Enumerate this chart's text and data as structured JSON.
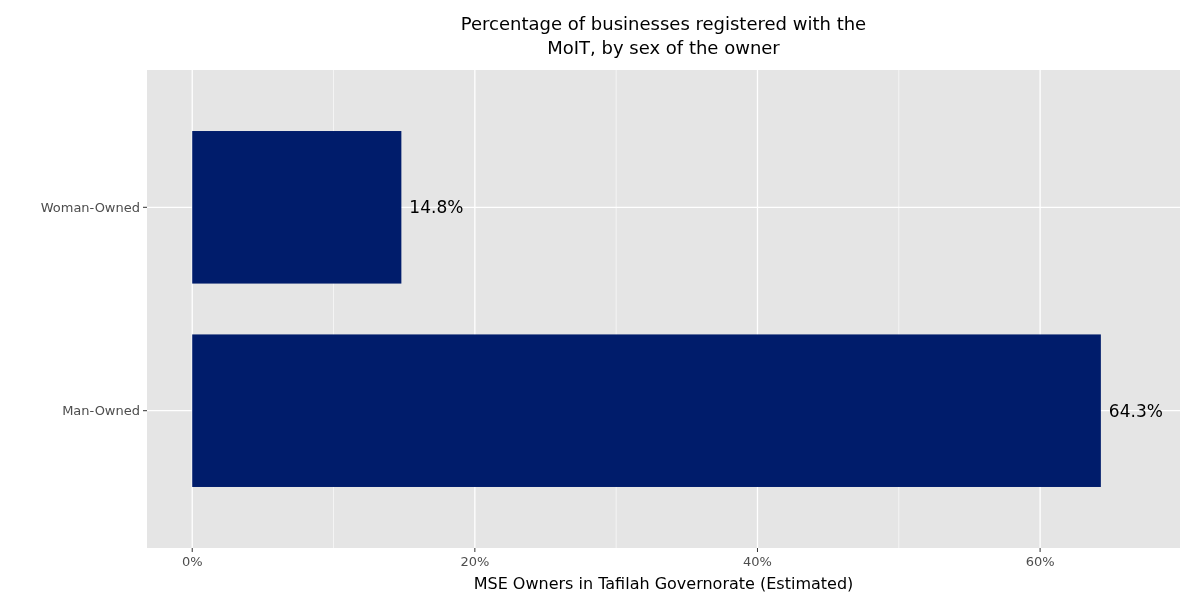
{
  "chart_data": {
    "type": "bar",
    "orientation": "horizontal",
    "title": "Percentage of businesses registered with the\nMoIT, by sex of the owner",
    "xlabel": "MSE Owners in Tafilah Governorate (Estimated)",
    "categories": [
      "Woman-Owned",
      "Man-Owned"
    ],
    "values": [
      14.8,
      64.3
    ],
    "color": "#001c6b",
    "value_labels": [
      "14.8%",
      "64.3%"
    ],
    "xlim": [
      -3.2,
      69.9
    ],
    "xticks": [
      {
        "value": 0,
        "label": "0%"
      },
      {
        "value": 20,
        "label": "20%"
      },
      {
        "value": 40,
        "label": "40%"
      },
      {
        "value": 60,
        "label": "60%"
      }
    ],
    "grid": true
  }
}
